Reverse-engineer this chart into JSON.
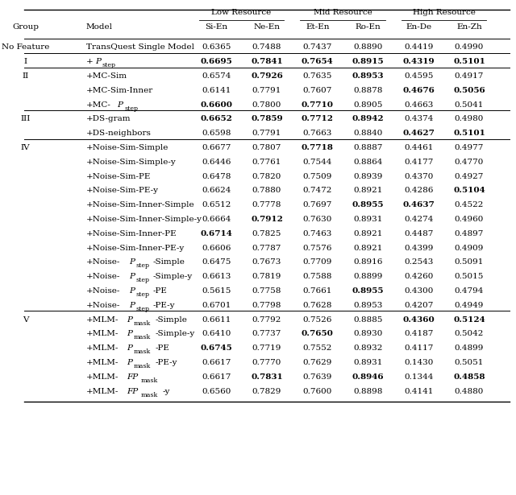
{
  "col_headers_row1": [
    "",
    "",
    "Low Resource",
    "",
    "Mid Resource",
    "",
    "High Resource",
    ""
  ],
  "col_headers_row2": [
    "Group",
    "Model",
    "Si-En",
    "Ne-En",
    "Et-En",
    "Ro-En",
    "En-De",
    "En-Zh"
  ],
  "rows": [
    {
      "group": "No Feature",
      "model": "TransQuest Single Model",
      "model_italic": false,
      "values": [
        "0.6365",
        "0.7488",
        "0.7437",
        "0.8890",
        "0.4419",
        "0.4990"
      ],
      "bold": [
        false,
        false,
        false,
        false,
        false,
        false
      ],
      "section_break_before": false,
      "section_break_after": true
    },
    {
      "group": "I",
      "model": "+P_step",
      "model_italic": true,
      "values": [
        "0.6695",
        "0.7841",
        "0.7654",
        "0.8915",
        "0.4319",
        "0.5101"
      ],
      "bold": [
        true,
        true,
        true,
        true,
        true,
        true
      ],
      "section_break_before": false,
      "section_break_after": true
    },
    {
      "group": "II",
      "model": "+MC-Sim",
      "model_italic": false,
      "values": [
        "0.6574",
        "0.7926",
        "0.7635",
        "0.8953",
        "0.4595",
        "0.4917"
      ],
      "bold": [
        false,
        true,
        false,
        true,
        false,
        false
      ],
      "section_break_before": false,
      "section_break_after": false
    },
    {
      "group": "",
      "model": "+MC-Sim-Inner",
      "model_italic": false,
      "values": [
        "0.6141",
        "0.7791",
        "0.7607",
        "0.8878",
        "0.4676",
        "0.5056"
      ],
      "bold": [
        false,
        false,
        false,
        false,
        true,
        true
      ],
      "section_break_before": false,
      "section_break_after": false
    },
    {
      "group": "",
      "model": "+MC-P_step",
      "model_italic": true,
      "values": [
        "0.6600",
        "0.7800",
        "0.7710",
        "0.8905",
        "0.4663",
        "0.5041"
      ],
      "bold": [
        true,
        false,
        true,
        false,
        false,
        false
      ],
      "section_break_before": false,
      "section_break_after": true
    },
    {
      "group": "III",
      "model": "+DS-gram",
      "model_italic": false,
      "values": [
        "0.6652",
        "0.7859",
        "0.7712",
        "0.8942",
        "0.4374",
        "0.4980"
      ],
      "bold": [
        true,
        true,
        true,
        true,
        false,
        false
      ],
      "section_break_before": false,
      "section_break_after": false
    },
    {
      "group": "",
      "model": "+DS-neighbors",
      "model_italic": false,
      "values": [
        "0.6598",
        "0.7791",
        "0.7663",
        "0.8840",
        "0.4627",
        "0.5101"
      ],
      "bold": [
        false,
        false,
        false,
        false,
        true,
        true
      ],
      "section_break_before": false,
      "section_break_after": true
    },
    {
      "group": "IV",
      "model": "+Noise-Sim-Simple",
      "model_italic": false,
      "values": [
        "0.6677",
        "0.7807",
        "0.7718",
        "0.8887",
        "0.4461",
        "0.4977"
      ],
      "bold": [
        false,
        false,
        true,
        false,
        false,
        false
      ],
      "section_break_before": false,
      "section_break_after": false
    },
    {
      "group": "",
      "model": "+Noise-Sim-Simple-y",
      "model_italic": false,
      "values": [
        "0.6446",
        "0.7761",
        "0.7544",
        "0.8864",
        "0.4177",
        "0.4770"
      ],
      "bold": [
        false,
        false,
        false,
        false,
        false,
        false
      ],
      "section_break_before": false,
      "section_break_after": false
    },
    {
      "group": "",
      "model": "+Noise-Sim-PE",
      "model_italic": false,
      "values": [
        "0.6478",
        "0.7820",
        "0.7509",
        "0.8939",
        "0.4370",
        "0.4927"
      ],
      "bold": [
        false,
        false,
        false,
        false,
        false,
        false
      ],
      "section_break_before": false,
      "section_break_after": false
    },
    {
      "group": "",
      "model": "+Noise-Sim-PE-y",
      "model_italic": false,
      "values": [
        "0.6624",
        "0.7880",
        "0.7472",
        "0.8921",
        "0.4286",
        "0.5104"
      ],
      "bold": [
        false,
        false,
        false,
        false,
        false,
        true
      ],
      "section_break_before": false,
      "section_break_after": false
    },
    {
      "group": "",
      "model": "+Noise-Sim-Inner-Simple",
      "model_italic": false,
      "values": [
        "0.6512",
        "0.7778",
        "0.7697",
        "0.8955",
        "0.4637",
        "0.4522"
      ],
      "bold": [
        false,
        false,
        false,
        true,
        true,
        false
      ],
      "section_break_before": false,
      "section_break_after": false
    },
    {
      "group": "",
      "model": "+Noise-Sim-Inner-Simple-y",
      "model_italic": false,
      "values": [
        "0.6664",
        "0.7912",
        "0.7630",
        "0.8931",
        "0.4274",
        "0.4960"
      ],
      "bold": [
        false,
        true,
        false,
        false,
        false,
        false
      ],
      "section_break_before": false,
      "section_break_after": false
    },
    {
      "group": "",
      "model": "+Noise-Sim-Inner-PE",
      "model_italic": false,
      "values": [
        "0.6714",
        "0.7825",
        "0.7463",
        "0.8921",
        "0.4487",
        "0.4897"
      ],
      "bold": [
        true,
        false,
        false,
        false,
        false,
        false
      ],
      "section_break_before": false,
      "section_break_after": false
    },
    {
      "group": "",
      "model": "+Noise-Sim-Inner-PE-y",
      "model_italic": false,
      "values": [
        "0.6606",
        "0.7787",
        "0.7576",
        "0.8921",
        "0.4399",
        "0.4909"
      ],
      "bold": [
        false,
        false,
        false,
        false,
        false,
        false
      ],
      "section_break_before": false,
      "section_break_after": false
    },
    {
      "group": "",
      "model": "+Noise-P_step-Simple",
      "model_italic": true,
      "values": [
        "0.6475",
        "0.7673",
        "0.7709",
        "0.8916",
        "0.2543",
        "0.5091"
      ],
      "bold": [
        false,
        false,
        false,
        false,
        false,
        false
      ],
      "section_break_before": false,
      "section_break_after": false
    },
    {
      "group": "",
      "model": "+Noise-P_step-Simple-y",
      "model_italic": true,
      "values": [
        "0.6613",
        "0.7819",
        "0.7588",
        "0.8899",
        "0.4260",
        "0.5015"
      ],
      "bold": [
        false,
        false,
        false,
        false,
        false,
        false
      ],
      "section_break_before": false,
      "section_break_after": false
    },
    {
      "group": "",
      "model": "+Noise-P_step-PE",
      "model_italic": true,
      "values": [
        "0.5615",
        "0.7758",
        "0.7661",
        "0.8955",
        "0.4300",
        "0.4794"
      ],
      "bold": [
        false,
        false,
        false,
        true,
        false,
        false
      ],
      "section_break_before": false,
      "section_break_after": false
    },
    {
      "group": "",
      "model": "+Noise-P_step-PE-y",
      "model_italic": true,
      "values": [
        "0.6701",
        "0.7798",
        "0.7628",
        "0.8953",
        "0.4207",
        "0.4949"
      ],
      "bold": [
        false,
        false,
        false,
        false,
        false,
        false
      ],
      "section_break_before": false,
      "section_break_after": true
    },
    {
      "group": "V",
      "model": "+MLM-P_mask-Simple",
      "model_italic": true,
      "values": [
        "0.6611",
        "0.7792",
        "0.7526",
        "0.8885",
        "0.4360",
        "0.5124"
      ],
      "bold": [
        false,
        false,
        false,
        false,
        true,
        true
      ],
      "section_break_before": false,
      "section_break_after": false
    },
    {
      "group": "",
      "model": "+MLM-P_mask-Simple-y",
      "model_italic": true,
      "values": [
        "0.6410",
        "0.7737",
        "0.7650",
        "0.8930",
        "0.4187",
        "0.5042"
      ],
      "bold": [
        false,
        false,
        true,
        false,
        false,
        false
      ],
      "section_break_before": false,
      "section_break_after": false
    },
    {
      "group": "",
      "model": "+MLM-P_mask-PE",
      "model_italic": true,
      "values": [
        "0.6745",
        "0.7719",
        "0.7552",
        "0.8932",
        "0.4117",
        "0.4899"
      ],
      "bold": [
        true,
        false,
        false,
        false,
        false,
        false
      ],
      "section_break_before": false,
      "section_break_after": false
    },
    {
      "group": "",
      "model": "+MLM-P_mask-PE-y",
      "model_italic": true,
      "values": [
        "0.6617",
        "0.7770",
        "0.7629",
        "0.8931",
        "0.1430",
        "0.5051"
      ],
      "bold": [
        false,
        false,
        false,
        false,
        false,
        false
      ],
      "section_break_before": false,
      "section_break_after": false
    },
    {
      "group": "",
      "model": "+MLM-FP_mask",
      "model_italic": true,
      "values": [
        "0.6617",
        "0.7831",
        "0.7639",
        "0.8946",
        "0.1344",
        "0.4858"
      ],
      "bold": [
        false,
        true,
        false,
        true,
        false,
        true
      ],
      "section_break_before": false,
      "section_break_after": false
    },
    {
      "group": "",
      "model": "+MLM-FP_mask-y",
      "model_italic": true,
      "values": [
        "0.6560",
        "0.7829",
        "0.7600",
        "0.8898",
        "0.4141",
        "0.4880"
      ],
      "bold": [
        false,
        false,
        false,
        false,
        false,
        false
      ],
      "section_break_before": false,
      "section_break_after": false
    }
  ],
  "section_breaks_after": [
    1,
    2,
    5,
    7,
    19
  ],
  "bg_color": "#ffffff",
  "text_color": "#000000",
  "header_line_color": "#000000",
  "font_size": 7.5
}
